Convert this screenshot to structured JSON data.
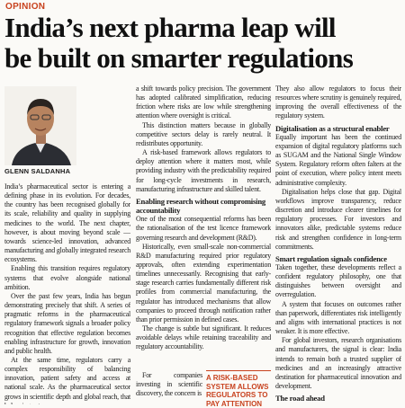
{
  "header": {
    "section": "OPINION",
    "headline_lines": [
      "India’s next pharma leap will",
      "be built on smarter regulations"
    ]
  },
  "author": {
    "name": "GLENN SALDANHA"
  },
  "columns": [
    [
      {
        "text": "India’s pharmaceutical sector is entering a defining phase in its evolution. For decades, the country has been recognised globally for its scale, reliability and quality in supplying medicines to the world. The next chapter, however, is about moving beyond scale — towards science-led innovation, advanced manufacturing and globally integrated research ecosystems."
      },
      {
        "text": "Enabling this transition requires regulatory systems that evolve alongside national ambition."
      },
      {
        "text": "Over the past few years, India has begun demonstrating precisely that shift. A series of pragmatic reforms in the pharmaceutical regulatory framework signals a broader policy recognition that effective regulation becomes enabling infrastructure for growth, innovation and public health."
      },
      {
        "text": "At the same time, regulators carry a complex responsibility of balancing innovation, patient safety and access at national scale. As the pharmaceutical sector grows in scientific depth and global reach, that balancing act"
      }
    ],
    [
      {
        "text": "a shift towards policy precision. The government has adopted calibrated simplification, reducing friction where risks are low while strengthening attention where oversight is critical."
      },
      {
        "text": "This distinction matters because in globally competitive sectors delay is rarely neutral. It redistributes opportunity."
      },
      {
        "text": "A risk-based framework allows regulators to deploy attention where it matters most, while providing industry with the predictability required for long-cycle investments in research, manufacturing infrastructure and skilled talent."
      },
      {
        "heading": "Enabling research without compromising accountability"
      },
      {
        "text": "One of the most consequential reforms has been the rationalisation of the test licence framework governing research and development (R&D)."
      },
      {
        "text": "Historically, even small-scale non-commercial R&D manufacturing required prior regulatory approvals, often extending experimentation timelines unnecessarily. Recognising that early-stage research carries fundamentally different risk profiles from commercial manufacturing, the regulator has introduced mechanisms that allow companies to proceed through notification rather than prior permission in defined cases."
      },
      {
        "text": "The change is subtle but significant. It reduces avoidable delays while retaining traceability and regulatory accountability."
      }
    ],
    [
      {
        "text": "They also allow regulators to focus their resources where scrutiny is genuinely required, improving the overall effectiveness of the regulatory system."
      },
      {
        "heading": "Digitalisation as a structural enabler"
      },
      {
        "text": "Equally important has been the continued expansion of digital regulatory platforms such as SUGAM and the National Single Window System. Regulatory reform often falters at the point of execution, where policy intent meets administrative complexity."
      },
      {
        "text": "Digitalisation helps close that gap. Digital workflows improve transparency, reduce discretion and introduce clearer timelines for regulatory processes. For investors and innovators alike, predictable systems reduce risk and strengthen confidence in long-term commitments."
      },
      {
        "heading": "Smart regulation signals confidence"
      },
      {
        "text": "Taken together, these developments reflect a confident regulatory philosophy, one that distinguishes between oversight and overregulation."
      },
      {
        "text": "A system that focuses on outcomes rather than paperwork, differentiates risk intelligently and aligns with international practices is not weaker. It is more effective."
      },
      {
        "text": "For global investors, research organisations and manufacturers, the signal is clear: India intends to remain both a trusted supplier of medicines and an increasingly attractive destination for pharmaceutical innovation and development."
      },
      {
        "heading": "The road ahead"
      }
    ]
  ],
  "column_2_tail": "For companies investing in scientific discovery, the concern is",
  "pull_quote": "A RISK-BASED SYSTEM ALLOWS REGULATORS TO PAY ATTENTION"
}
